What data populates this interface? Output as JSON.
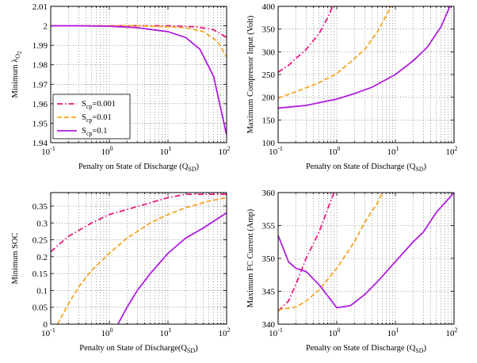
{
  "colors": {
    "s_0001": "#e8177f",
    "s_001": "#f5a623",
    "s_01": "#b11ee0"
  },
  "legend": {
    "items": [
      {
        "key": "s_0001",
        "base": "S",
        "sub": "cp",
        "rest": "=0.001",
        "dash": "dashdot"
      },
      {
        "key": "s_001",
        "base": "S",
        "sub": "cp",
        "rest": "=0.01",
        "dash": "dash"
      },
      {
        "key": "s_01",
        "base": "S",
        "sub": "cp",
        "rest": "=0.1",
        "dash": "solid"
      }
    ]
  },
  "chart_data": [
    {
      "id": "tl",
      "type": "line",
      "xscale": "log",
      "xlim": [
        0.1,
        100
      ],
      "ylim": [
        1.94,
        2.01
      ],
      "xticks": [
        0.1,
        1,
        10,
        100
      ],
      "yticks": [
        1.94,
        1.95,
        1.96,
        1.97,
        1.98,
        1.99,
        2,
        2.01
      ],
      "ytick_labels": [
        "1.94",
        "1.95",
        "1.96",
        "1.97",
        "1.98",
        "1.99",
        "2",
        "2.01"
      ],
      "xlabel": {
        "main": "Penalty on State of Discharge (Q",
        "sub": "SD",
        "end": ")"
      },
      "ylabel": {
        "main": "Minimum λ",
        "sub": "O",
        "end": "2"
      },
      "grid": true,
      "legend": "lower-left",
      "series": [
        {
          "key": "s_0001",
          "dash": "dashdot",
          "x": [
            0.1,
            0.3,
            1,
            3,
            10,
            30,
            60,
            100
          ],
          "y": [
            2.0,
            2.0,
            2.0,
            2.0,
            2.0,
            1.9995,
            1.998,
            1.994
          ]
        },
        {
          "key": "s_001",
          "dash": "dash",
          "x": [
            0.1,
            0.3,
            1,
            3,
            10,
            20,
            40,
            70,
            100
          ],
          "y": [
            2.0,
            2.0,
            2.0,
            2.0,
            1.9995,
            1.999,
            1.997,
            1.992,
            1.984
          ]
        },
        {
          "key": "s_01",
          "dash": "solid",
          "x": [
            0.1,
            0.3,
            1,
            3,
            10,
            20,
            35,
            60,
            100
          ],
          "y": [
            2.0,
            2.0,
            1.9998,
            1.999,
            1.997,
            1.994,
            1.988,
            1.974,
            1.944
          ]
        }
      ]
    },
    {
      "id": "tr",
      "type": "line",
      "xscale": "log",
      "xlim": [
        0.1,
        100
      ],
      "ylim": [
        100,
        400
      ],
      "xticks": [
        0.1,
        1,
        10,
        100
      ],
      "yticks": [
        100,
        150,
        200,
        250,
        300,
        350,
        400
      ],
      "ytick_labels": [
        "100",
        "150",
        "200",
        "250",
        "300",
        "350",
        "400"
      ],
      "xlabel": {
        "main": "Penalty on State of Discharge (Q",
        "sub": "SD",
        "end": ")"
      },
      "ylabel": {
        "main": "Maximum Compressor Input (Volt)",
        "sub": "",
        "end": ""
      },
      "grid": true,
      "series": [
        {
          "key": "s_0001",
          "dash": "dashdot",
          "x": [
            0.1,
            0.15,
            0.2,
            0.3,
            0.5,
            0.7,
            0.85
          ],
          "y": [
            255,
            270,
            285,
            305,
            340,
            375,
            400
          ]
        },
        {
          "key": "s_001",
          "dash": "dash",
          "x": [
            0.1,
            0.2,
            0.5,
            1,
            2,
            3,
            5,
            7,
            8.5
          ],
          "y": [
            198,
            212,
            232,
            252,
            285,
            305,
            345,
            380,
            400
          ]
        },
        {
          "key": "s_01",
          "dash": "solid",
          "x": [
            0.1,
            0.3,
            1,
            2,
            4,
            10,
            20,
            35,
            60,
            85
          ],
          "y": [
            176,
            182,
            196,
            208,
            222,
            250,
            280,
            310,
            355,
            400
          ]
        }
      ]
    },
    {
      "id": "bl",
      "type": "line",
      "xscale": "log",
      "xlim": [
        0.1,
        100
      ],
      "ylim": [
        0,
        0.39
      ],
      "xticks": [
        0.1,
        1,
        10,
        100
      ],
      "yticks": [
        0,
        0.05,
        0.1,
        0.15,
        0.2,
        0.25,
        0.3,
        0.35
      ],
      "ytick_labels": [
        "0",
        "0.05",
        "0.1",
        "0.15",
        "0.2",
        "0.25",
        "0.3",
        "0.35"
      ],
      "xlabel": {
        "main": "Penalty on State of Discharge(Q",
        "sub": "SD",
        "end": ")"
      },
      "ylabel": {
        "main": "Minimum SOC",
        "sub": "",
        "end": ""
      },
      "grid": true,
      "series": [
        {
          "key": "s_0001",
          "dash": "dashdot",
          "x": [
            0.1,
            0.2,
            0.5,
            1,
            2,
            5,
            10,
            20,
            50,
            100
          ],
          "y": [
            0.215,
            0.26,
            0.3,
            0.325,
            0.34,
            0.36,
            0.375,
            0.385,
            0.385,
            0.385
          ]
        },
        {
          "key": "s_001",
          "dash": "dash",
          "x": [
            0.13,
            0.2,
            0.3,
            0.5,
            1,
            2,
            5,
            10,
            20,
            50,
            100
          ],
          "y": [
            0,
            0.06,
            0.11,
            0.16,
            0.21,
            0.255,
            0.3,
            0.325,
            0.345,
            0.365,
            0.375
          ]
        },
        {
          "key": "s_01",
          "dash": "solid",
          "x": [
            1.4,
            2,
            3,
            5,
            10,
            20,
            40,
            100
          ],
          "y": [
            0,
            0.05,
            0.1,
            0.15,
            0.21,
            0.255,
            0.285,
            0.33
          ]
        }
      ]
    },
    {
      "id": "br",
      "type": "line",
      "xscale": "log",
      "xlim": [
        0.1,
        100
      ],
      "ylim": [
        340,
        360
      ],
      "xticks": [
        0.1,
        1,
        10,
        100
      ],
      "yticks": [
        340,
        345,
        350,
        355,
        360
      ],
      "ytick_labels": [
        "340",
        "345",
        "350",
        "355",
        "360"
      ],
      "xlabel": {
        "main": "Penalty on State of Discharge (Q",
        "sub": "SD",
        "end": ")"
      },
      "ylabel": {
        "main": "Maximum FC Current (Amp)",
        "sub": "",
        "end": ""
      },
      "grid": true,
      "series": [
        {
          "key": "s_0001",
          "dash": "dashdot",
          "x": [
            0.1,
            0.15,
            0.2,
            0.3,
            0.5,
            0.7,
            0.9
          ],
          "y": [
            342,
            343.5,
            346,
            350,
            354,
            357.5,
            360
          ]
        },
        {
          "key": "s_001",
          "dash": "dash",
          "x": [
            0.1,
            0.2,
            0.3,
            0.5,
            1,
            2,
            3,
            5,
            6
          ],
          "y": [
            342.2,
            342.6,
            343.5,
            345.2,
            348.5,
            352.5,
            355.5,
            358.5,
            360
          ]
        },
        {
          "key": "s_01",
          "dash": "solid",
          "x": [
            0.1,
            0.15,
            0.2,
            0.3,
            0.5,
            1,
            1.7,
            3,
            5,
            10,
            20,
            30,
            50,
            100
          ],
          "y": [
            353.5,
            349.5,
            348.5,
            348,
            346,
            342.5,
            342.8,
            344.5,
            346.5,
            349.5,
            352.5,
            354,
            357,
            360
          ]
        }
      ]
    }
  ]
}
